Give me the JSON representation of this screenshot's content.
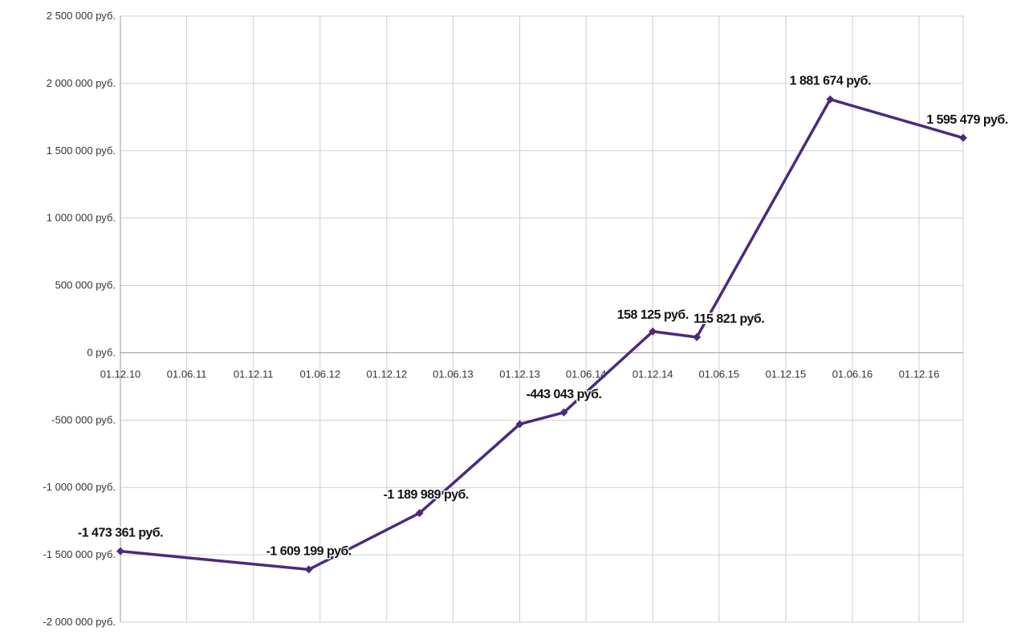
{
  "chart_data": {
    "type": "line",
    "title": "",
    "xlabel": "",
    "ylabel": "",
    "ylim": [
      -2000000,
      2500000
    ],
    "xlim": [
      "2010-12-01",
      "2017-04-01"
    ],
    "grid": true,
    "legend": "none",
    "y_ticks": [
      {
        "value": 2500000,
        "label": "2 500 000 руб."
      },
      {
        "value": 2000000,
        "label": "2 000 000 руб."
      },
      {
        "value": 1500000,
        "label": "1 500 000 руб."
      },
      {
        "value": 1000000,
        "label": "1 000 000 руб."
      },
      {
        "value": 500000,
        "label": "500 000 руб."
      },
      {
        "value": 0,
        "label": "0 руб."
      },
      {
        "value": -500000,
        "label": "-500 000 руб."
      },
      {
        "value": -1000000,
        "label": "-1 000 000 руб."
      },
      {
        "value": -1500000,
        "label": "-1 500 000 руб."
      },
      {
        "value": -2000000,
        "label": "-2 000 000 руб."
      }
    ],
    "x_ticks": [
      {
        "date": "2010-12-01",
        "label": "01.12.10"
      },
      {
        "date": "2011-06-01",
        "label": "01.06.11"
      },
      {
        "date": "2011-12-01",
        "label": "01.12.11"
      },
      {
        "date": "2012-06-01",
        "label": "01.06.12"
      },
      {
        "date": "2012-12-01",
        "label": "01.12.12"
      },
      {
        "date": "2013-06-01",
        "label": "01.06.13"
      },
      {
        "date": "2013-12-01",
        "label": "01.12.13"
      },
      {
        "date": "2014-06-01",
        "label": "01.06.14"
      },
      {
        "date": "2014-12-01",
        "label": "01.12.14"
      },
      {
        "date": "2015-06-01",
        "label": "01.06.15"
      },
      {
        "date": "2015-12-01",
        "label": "01.12.15"
      },
      {
        "date": "2016-06-01",
        "label": "01.06.16"
      },
      {
        "date": "2016-12-01",
        "label": "01.12.16"
      }
    ],
    "series": [
      {
        "color": "#4b2a7e",
        "points": [
          {
            "x": "2010-12-01",
            "y": -1473361,
            "label": "-1 473 361 руб."
          },
          {
            "x": "2012-05-01",
            "y": -1609199,
            "label": "-1 609 199 руб."
          },
          {
            "x": "2013-03-01",
            "y": -1189989,
            "label": "-1 189 989 руб."
          },
          {
            "x": "2013-12-01",
            "y": -530000,
            "label": ""
          },
          {
            "x": "2014-04-01",
            "y": -443043,
            "label": "-443 043 руб."
          },
          {
            "x": "2014-12-01",
            "y": 158125,
            "label": "158 125 руб."
          },
          {
            "x": "2015-04-01",
            "y": 115821,
            "label": "115 821 руб."
          },
          {
            "x": "2016-04-01",
            "y": 1881674,
            "label": "1 881 674 руб."
          },
          {
            "x": "2017-04-01",
            "y": 1595479,
            "label": "1 595 479 руб."
          }
        ]
      }
    ]
  }
}
